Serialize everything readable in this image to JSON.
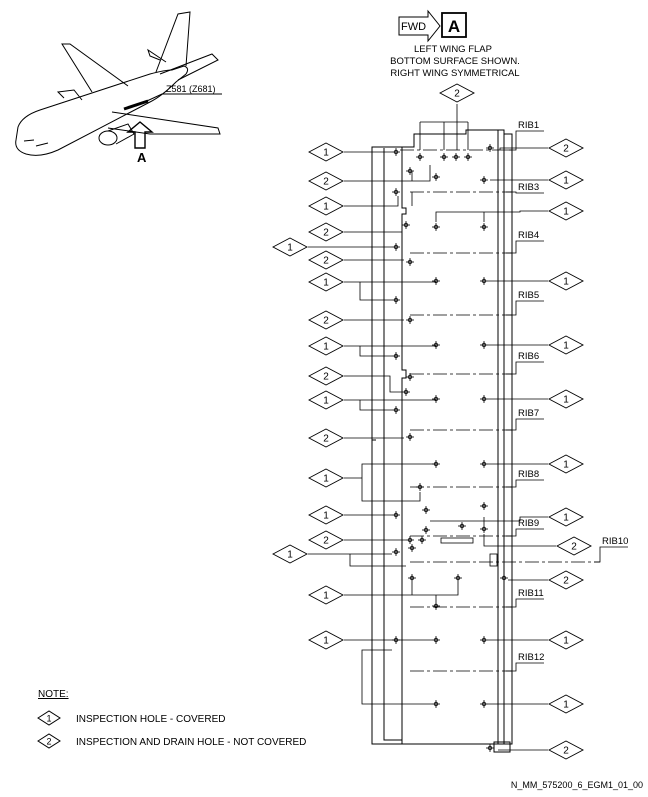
{
  "header": {
    "fwd_label": "FWD",
    "view_letter": "A",
    "title_lines": [
      "LEFT WING FLAP",
      "BOTTOM SURFACE SHOWN.",
      "RIGHT WING SYMMETRICAL"
    ]
  },
  "aircraft": {
    "zone_label": "Z581 (Z681)",
    "view_label": "A"
  },
  "ribs": [
    "RIB1",
    "RIB3",
    "RIB4",
    "RIB5",
    "RIB6",
    "RIB7",
    "RIB8",
    "RIB9",
    "RIB10",
    "RIB11",
    "RIB12"
  ],
  "callouts": {
    "one": "1",
    "two": "2"
  },
  "note": {
    "heading": "NOTE:",
    "items": [
      {
        "number": "1",
        "text": "INSPECTION HOLE - COVERED"
      },
      {
        "number": "2",
        "text": "INSPECTION AND DRAIN HOLE - NOT COVERED"
      }
    ]
  },
  "figure_id": "N_MM_575200_6_EGM1_01_00"
}
